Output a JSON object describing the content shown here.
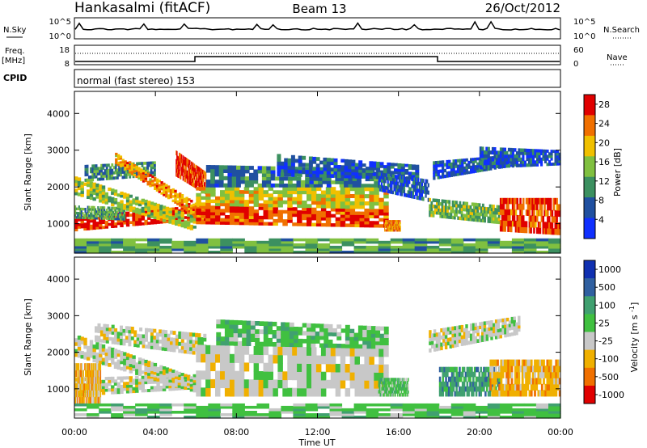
{
  "header": {
    "station": "Hankasalmi (fitACF)",
    "beam": "Beam 13",
    "date": "26/Oct/2012"
  },
  "nsky_panel": {
    "label": "N.Sky",
    "tick_top": "10^5",
    "tick_bottom": "10^0",
    "right_label": "N.Search",
    "right_tick_top": "10^5",
    "right_tick_bottom": "10^0"
  },
  "freq_panel": {
    "label_line1": "Freq.",
    "label_line2": "[MHz]",
    "tick_top": "18",
    "tick_bottom": "8",
    "right_label": "Nave",
    "right_tick_top": "60",
    "right_tick_bottom": "0"
  },
  "cpid_panel": {
    "label": "CPID",
    "mode_text": "normal (fast stereo) 153"
  },
  "x_axis": {
    "ticks": [
      "00:00",
      "04:00",
      "08:00",
      "12:00",
      "16:00",
      "20:00",
      "00:00"
    ],
    "label": "Time UT"
  },
  "chart_data": [
    {
      "type": "heatmap",
      "name": "power",
      "ylabel": "Slant Range [km]",
      "yticks": [
        1000,
        2000,
        3000,
        4000
      ],
      "ylim": [
        200,
        4600
      ],
      "xlim": [
        0,
        24
      ],
      "colorbar": {
        "label": "Power [dB]",
        "ticks": [
          "4",
          "8",
          "12",
          "16",
          "20",
          "24",
          "28"
        ],
        "range": [
          0,
          30
        ],
        "colors": [
          "#1030ff",
          "#2050a0",
          "#3c9060",
          "#80c040",
          "#f0c000",
          "#f07000",
          "#e00000"
        ]
      },
      "bands": [
        {
          "t0": 0.0,
          "t1": 6.0,
          "r0": 800,
          "r1": 1200,
          "r0b": 1100,
          "r1b": 1500,
          "level": 27
        },
        {
          "t0": 0.0,
          "t1": 2.5,
          "r0": 1150,
          "r1": 1500,
          "r0b": 1100,
          "r1b": 1450,
          "level": 12
        },
        {
          "t0": 0.0,
          "t1": 6.0,
          "r0": 1800,
          "r1": 2300,
          "r0b": 800,
          "r1b": 1200,
          "level": 16
        },
        {
          "t0": 0.5,
          "t1": 4.0,
          "r0": 2150,
          "r1": 2600,
          "r0b": 2300,
          "r1b": 2700,
          "level": 10
        },
        {
          "t0": 2.0,
          "t1": 6.5,
          "r0": 2650,
          "r1": 2950,
          "r0b": 1000,
          "r1b": 1400,
          "level": 22
        },
        {
          "t0": 5.0,
          "t1": 6.5,
          "r0": 2300,
          "r1": 3000,
          "r0b": 1800,
          "r1b": 2400,
          "level": 26
        },
        {
          "t0": 6.0,
          "t1": 15.5,
          "r0": 1000,
          "r1": 1500,
          "r0b": 900,
          "r1b": 1400,
          "level": 26
        },
        {
          "t0": 6.0,
          "t1": 15.5,
          "r0": 1500,
          "r1": 2000,
          "r0b": 1400,
          "r1b": 2000,
          "level": 18
        },
        {
          "t0": 6.5,
          "t1": 15.0,
          "r0": 2000,
          "r1": 2600,
          "r0b": 2000,
          "r1b": 2500,
          "level": 9
        },
        {
          "t0": 10.0,
          "t1": 17.0,
          "r0": 2300,
          "r1": 2900,
          "r0b": 2200,
          "r1b": 2600,
          "level": 6
        },
        {
          "t0": 15.3,
          "t1": 16.1,
          "r0": 800,
          "r1": 1100,
          "r0b": 800,
          "r1b": 1100,
          "level": 22
        },
        {
          "t0": 15.0,
          "t1": 17.5,
          "r0": 1900,
          "r1": 2400,
          "r0b": 1600,
          "r1b": 2200,
          "level": 6
        },
        {
          "t0": 17.7,
          "t1": 22.0,
          "r0": 2200,
          "r1": 2700,
          "r0b": 2600,
          "r1b": 2900,
          "level": 6
        },
        {
          "t0": 17.5,
          "t1": 21.0,
          "r0": 1200,
          "r1": 1700,
          "r0b": 1000,
          "r1b": 1500,
          "level": 14
        },
        {
          "t0": 21.0,
          "t1": 24.0,
          "r0": 800,
          "r1": 1700,
          "r0b": 700,
          "r1b": 1700,
          "level": 26
        },
        {
          "t0": 20.0,
          "t1": 24.0,
          "r0": 2500,
          "r1": 3100,
          "r0b": 2600,
          "r1b": 3000,
          "level": 6
        },
        {
          "t0": 0.0,
          "t1": 24.0,
          "r0": 200,
          "r1": 600,
          "r0b": 200,
          "r1b": 600,
          "level": 12
        }
      ]
    },
    {
      "type": "heatmap",
      "name": "velocity",
      "ylabel": "Slant Range [km]",
      "yticks": [
        1000,
        2000,
        3000,
        4000
      ],
      "ylim": [
        200,
        4600
      ],
      "xlim": [
        0,
        24
      ],
      "colorbar": {
        "label": "Velocity [m s^-1]",
        "ticks": [
          "1000",
          "500",
          "100",
          "25",
          "-25",
          "-100",
          "-500",
          "-1000"
        ],
        "colors": [
          "#1030b0",
          "#3060a0",
          "#40a070",
          "#40c040",
          "#c8c8c8",
          "#f0b000",
          "#f07000",
          "#e00000"
        ]
      },
      "bands": [
        {
          "t0": 0.0,
          "t1": 6.0,
          "r0": 800,
          "r1": 1300,
          "r0b": 1000,
          "r1b": 1400,
          "level": 4
        },
        {
          "t0": 0.0,
          "t1": 1.3,
          "r0": 600,
          "r1": 1700,
          "r0b": 600,
          "r1b": 1700,
          "level": 5
        },
        {
          "t0": 0.0,
          "t1": 6.0,
          "r0": 1900,
          "r1": 2500,
          "r0b": 900,
          "r1b": 1300,
          "level": 4
        },
        {
          "t0": 1.0,
          "t1": 6.5,
          "r0": 2300,
          "r1": 2800,
          "r0b": 1900,
          "r1b": 2500,
          "level": 4
        },
        {
          "t0": 6.0,
          "t1": 15.5,
          "r0": 800,
          "r1": 2200,
          "r0b": 800,
          "r1b": 2100,
          "level": 4
        },
        {
          "t0": 7.0,
          "t1": 15.5,
          "r0": 2200,
          "r1": 2900,
          "r0b": 2100,
          "r1b": 2700,
          "level": 3
        },
        {
          "t0": 15.0,
          "t1": 16.5,
          "r0": 800,
          "r1": 1300,
          "r0b": 800,
          "r1b": 1300,
          "level": 3
        },
        {
          "t0": 17.5,
          "t1": 22.0,
          "r0": 2000,
          "r1": 2600,
          "r0b": 2500,
          "r1b": 3000,
          "level": 4
        },
        {
          "t0": 18.0,
          "t1": 21.0,
          "r0": 800,
          "r1": 1600,
          "r0b": 800,
          "r1b": 1600,
          "level": 2
        },
        {
          "t0": 20.5,
          "t1": 24.0,
          "r0": 800,
          "r1": 1800,
          "r0b": 800,
          "r1b": 1800,
          "level": 5
        },
        {
          "t0": 0.0,
          "t1": 24.0,
          "r0": 200,
          "r1": 600,
          "r0b": 200,
          "r1b": 600,
          "level": 3
        }
      ]
    }
  ]
}
